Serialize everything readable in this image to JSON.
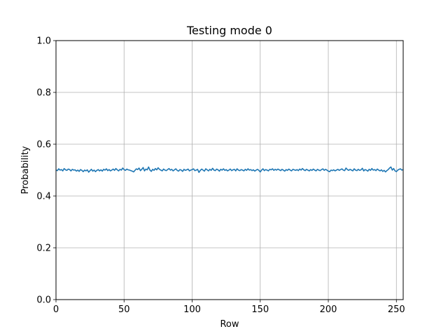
{
  "chart_data": {
    "type": "line",
    "title": "Testing mode 0",
    "xlabel": "Row",
    "ylabel": "Probability",
    "xlim": [
      0,
      255
    ],
    "ylim": [
      0.0,
      1.0
    ],
    "grid": true,
    "x_ticks": [
      0,
      50,
      100,
      150,
      200,
      250
    ],
    "y_ticks": [
      0.0,
      0.2,
      0.4,
      0.6,
      0.8,
      1.0
    ],
    "x_tick_labels": [
      "0",
      "50",
      "100",
      "150",
      "200",
      "250"
    ],
    "y_tick_labels": [
      "0.0",
      "0.2",
      "0.4",
      "0.6",
      "0.8",
      "1.0"
    ],
    "series": [
      {
        "color": "#1f77b4",
        "x_start": 0,
        "x_step": 1,
        "values": [
          0.5,
          0.498,
          0.505,
          0.5,
          0.502,
          0.497,
          0.506,
          0.501,
          0.499,
          0.504,
          0.502,
          0.497,
          0.503,
          0.5,
          0.501,
          0.496,
          0.5,
          0.495,
          0.502,
          0.499,
          0.494,
          0.5,
          0.497,
          0.501,
          0.492,
          0.498,
          0.503,
          0.496,
          0.5,
          0.494,
          0.499,
          0.502,
          0.497,
          0.501,
          0.496,
          0.503,
          0.5,
          0.505,
          0.498,
          0.502,
          0.497,
          0.5,
          0.504,
          0.499,
          0.506,
          0.501,
          0.497,
          0.503,
          0.5,
          0.508,
          0.502,
          0.499,
          0.504,
          0.501,
          0.5,
          0.498,
          0.496,
          0.493,
          0.499,
          0.505,
          0.502,
          0.508,
          0.498,
          0.503,
          0.51,
          0.497,
          0.504,
          0.501,
          0.512,
          0.5,
          0.495,
          0.503,
          0.499,
          0.506,
          0.501,
          0.509,
          0.503,
          0.5,
          0.497,
          0.504,
          0.5,
          0.498,
          0.502,
          0.506,
          0.5,
          0.503,
          0.497,
          0.501,
          0.505,
          0.499,
          0.496,
          0.502,
          0.5,
          0.495,
          0.503,
          0.499,
          0.501,
          0.504,
          0.497,
          0.5,
          0.502,
          0.505,
          0.498,
          0.5,
          0.503,
          0.491,
          0.499,
          0.504,
          0.5,
          0.496,
          0.505,
          0.501,
          0.497,
          0.503,
          0.499,
          0.507,
          0.5,
          0.498,
          0.504,
          0.501,
          0.496,
          0.503,
          0.5,
          0.505,
          0.499,
          0.502,
          0.497,
          0.5,
          0.504,
          0.498,
          0.501,
          0.503,
          0.497,
          0.505,
          0.5,
          0.498,
          0.502,
          0.5,
          0.497,
          0.503,
          0.499,
          0.505,
          0.5,
          0.502,
          0.498,
          0.501,
          0.496,
          0.5,
          0.503,
          0.499,
          0.493,
          0.5,
          0.505,
          0.498,
          0.502,
          0.5,
          0.497,
          0.503,
          0.501,
          0.505,
          0.499,
          0.503,
          0.5,
          0.504,
          0.501,
          0.498,
          0.503,
          0.5,
          0.496,
          0.502,
          0.499,
          0.504,
          0.5,
          0.497,
          0.503,
          0.501,
          0.499,
          0.502,
          0.498,
          0.504,
          0.5,
          0.506,
          0.501,
          0.498,
          0.503,
          0.5,
          0.497,
          0.502,
          0.499,
          0.504,
          0.5,
          0.497,
          0.503,
          0.5,
          0.498,
          0.502,
          0.505,
          0.499,
          0.503,
          0.5,
          0.496,
          0.494,
          0.5,
          0.498,
          0.501,
          0.497,
          0.5,
          0.503,
          0.499,
          0.502,
          0.505,
          0.5,
          0.498,
          0.508,
          0.502,
          0.499,
          0.503,
          0.5,
          0.497,
          0.505,
          0.5,
          0.498,
          0.503,
          0.499,
          0.501,
          0.507,
          0.497,
          0.502,
          0.5,
          0.496,
          0.503,
          0.499,
          0.506,
          0.5,
          0.502,
          0.498,
          0.504,
          0.5,
          0.497,
          0.501,
          0.495,
          0.499,
          0.493,
          0.498,
          0.502,
          0.508,
          0.512,
          0.5,
          0.506,
          0.497,
          0.494,
          0.5,
          0.503,
          0.505,
          0.5,
          0.502,
          0.498
        ]
      }
    ]
  }
}
